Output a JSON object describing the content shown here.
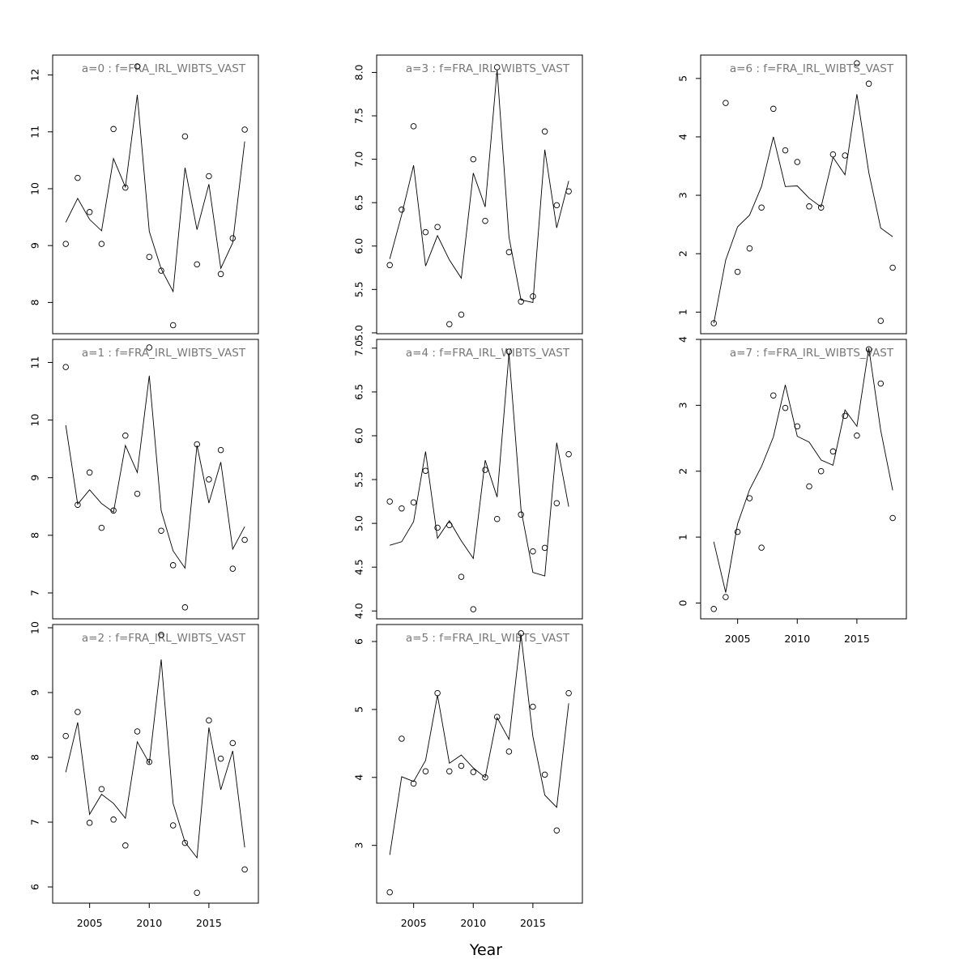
{
  "figure": {
    "xlabel": "Year"
  },
  "chart_data": [
    {
      "type": "line",
      "title": "a=0 : f=FRA_IRL_WIBTS_VAST",
      "x": [
        2003,
        2004,
        2005,
        2006,
        2007,
        2008,
        2009,
        2010,
        2011,
        2012,
        2013,
        2014,
        2015,
        2016,
        2017,
        2018
      ],
      "observed": [
        9.03,
        10.19,
        9.59,
        9.03,
        11.05,
        10.02,
        12.15,
        8.8,
        8.56,
        7.6,
        10.92,
        8.67,
        10.22,
        8.5,
        9.13,
        11.04
      ],
      "fitted": [
        9.41,
        9.83,
        9.46,
        9.26,
        10.53,
        10.03,
        11.65,
        9.25,
        8.59,
        8.19,
        10.37,
        9.28,
        10.08,
        8.6,
        9.05,
        10.83
      ],
      "yticks": [
        8,
        9,
        10,
        11,
        12
      ],
      "ylim": [
        7.45,
        12.35
      ],
      "show_xticks": false,
      "series": [
        {
          "name": ""
        },
        {
          "name": ""
        }
      ]
    },
    {
      "type": "line",
      "title": "a=1 : f=FRA_IRL_WIBTS_VAST",
      "x": [
        2003,
        2004,
        2005,
        2006,
        2007,
        2008,
        2009,
        2010,
        2011,
        2012,
        2013,
        2014,
        2015,
        2016,
        2017,
        2018
      ],
      "observed": [
        10.92,
        8.53,
        9.09,
        8.13,
        8.43,
        9.73,
        8.72,
        11.26,
        8.08,
        7.48,
        6.75,
        9.58,
        8.97,
        9.48,
        7.42,
        7.92
      ],
      "fitted": [
        9.91,
        8.54,
        8.79,
        8.55,
        8.4,
        9.56,
        9.09,
        10.77,
        8.43,
        7.73,
        7.43,
        9.56,
        8.56,
        9.27,
        7.76,
        8.15
      ],
      "yticks": [
        7,
        8,
        9,
        10,
        11
      ],
      "ylim": [
        6.55,
        11.4
      ],
      "show_xticks": false
    },
    {
      "type": "line",
      "title": "a=2 : f=FRA_IRL_WIBTS_VAST",
      "x": [
        2003,
        2004,
        2005,
        2006,
        2007,
        2008,
        2009,
        2010,
        2011,
        2012,
        2013,
        2014,
        2015,
        2016,
        2017,
        2018
      ],
      "observed": [
        8.33,
        8.7,
        6.99,
        7.51,
        7.04,
        6.64,
        8.4,
        7.93,
        9.89,
        6.95,
        6.68,
        5.91,
        8.57,
        7.98,
        8.22,
        6.27
      ],
      "fitted": [
        7.77,
        8.54,
        7.12,
        7.43,
        7.29,
        7.06,
        8.24,
        7.91,
        9.51,
        7.29,
        6.69,
        6.45,
        8.46,
        7.5,
        8.1,
        6.61
      ],
      "yticks": [
        6,
        7,
        8,
        9,
        10
      ],
      "ylim": [
        5.75,
        10.05
      ],
      "show_xticks": true
    },
    {
      "type": "line",
      "title": "a=3 : f=FRA_IRL_WIBTS_VAST",
      "x": [
        2003,
        2004,
        2005,
        2006,
        2007,
        2008,
        2009,
        2010,
        2011,
        2012,
        2013,
        2014,
        2015,
        2016,
        2017,
        2018
      ],
      "observed": [
        5.78,
        6.42,
        7.38,
        6.16,
        6.22,
        5.1,
        5.21,
        7.0,
        6.29,
        8.06,
        5.93,
        5.36,
        5.42,
        7.32,
        6.47,
        6.63
      ],
      "fitted": [
        5.85,
        6.36,
        6.93,
        5.77,
        6.12,
        5.84,
        5.63,
        6.84,
        6.45,
        8.03,
        6.1,
        5.38,
        5.35,
        7.11,
        6.21,
        6.75
      ],
      "yticks": [
        5.0,
        5.5,
        6.0,
        6.5,
        7.0,
        7.5,
        8.0
      ],
      "ylim": [
        4.99,
        8.2
      ],
      "show_xticks": false
    },
    {
      "type": "line",
      "title": "a=4 : f=FRA_IRL_WIBTS_VAST",
      "x": [
        2003,
        2004,
        2005,
        2006,
        2007,
        2008,
        2009,
        2010,
        2011,
        2012,
        2013,
        2014,
        2015,
        2016,
        2017,
        2018
      ],
      "observed": [
        5.25,
        5.17,
        5.24,
        5.6,
        4.95,
        4.98,
        4.39,
        4.02,
        5.61,
        5.05,
        6.96,
        5.1,
        4.68,
        4.72,
        5.23,
        5.79
      ],
      "fitted": [
        4.75,
        4.79,
        5.02,
        5.82,
        4.83,
        5.03,
        4.8,
        4.6,
        5.72,
        5.3,
        6.94,
        5.16,
        4.44,
        4.4,
        5.92,
        5.19
      ],
      "yticks": [
        4.0,
        4.5,
        5.0,
        5.5,
        6.0,
        6.5,
        7.0
      ],
      "ylim": [
        3.91,
        7.1
      ],
      "show_xticks": false
    },
    {
      "type": "line",
      "title": "a=5 : f=FRA_IRL_WIBTS_VAST",
      "x": [
        2003,
        2004,
        2005,
        2006,
        2007,
        2008,
        2009,
        2010,
        2011,
        2012,
        2013,
        2014,
        2015,
        2016,
        2017,
        2018
      ],
      "observed": [
        2.31,
        4.57,
        3.91,
        4.09,
        5.24,
        4.09,
        4.17,
        4.08,
        4.0,
        4.89,
        4.38,
        6.12,
        5.04,
        4.04,
        3.22,
        5.24
      ],
      "fitted": [
        2.86,
        4.01,
        3.94,
        4.25,
        5.21,
        4.21,
        4.33,
        4.14,
        4.0,
        4.88,
        4.56,
        6.1,
        4.6,
        3.74,
        3.56,
        5.09
      ],
      "yticks": [
        3,
        4,
        5,
        6
      ],
      "ylim": [
        2.15,
        6.25
      ],
      "show_xticks": true
    },
    {
      "type": "line",
      "title": "a=6 : f=FRA_IRL_WIBTS_VAST",
      "x": [
        2003,
        2004,
        2005,
        2006,
        2007,
        2008,
        2009,
        2010,
        2011,
        2012,
        2013,
        2014,
        2015,
        2016,
        2017,
        2018
      ],
      "observed": [
        0.81,
        4.58,
        1.69,
        2.09,
        2.79,
        4.48,
        3.77,
        3.57,
        2.81,
        2.79,
        3.7,
        3.68,
        5.26,
        4.91,
        0.85,
        1.76
      ],
      "fitted": [
        0.81,
        1.89,
        2.46,
        2.66,
        3.15,
        4.0,
        3.15,
        3.16,
        2.95,
        2.8,
        3.65,
        3.35,
        4.73,
        3.39,
        2.44,
        2.29
      ],
      "yticks": [
        1,
        2,
        3,
        4,
        5
      ],
      "ylim": [
        0.63,
        5.4
      ],
      "show_xticks": false
    },
    {
      "type": "line",
      "title": "a=7 : f=FRA_IRL_WIBTS_VAST",
      "x": [
        2003,
        2004,
        2005,
        2006,
        2007,
        2008,
        2009,
        2010,
        2011,
        2012,
        2013,
        2014,
        2015,
        2016,
        2017,
        2018
      ],
      "observed": [
        -0.09,
        0.09,
        1.08,
        1.59,
        0.84,
        3.15,
        2.96,
        2.68,
        1.77,
        2.0,
        2.3,
        2.84,
        2.54,
        3.85,
        3.33,
        1.29
      ],
      "fitted": [
        0.93,
        0.16,
        1.2,
        1.72,
        2.07,
        2.52,
        3.31,
        2.53,
        2.44,
        2.17,
        2.09,
        2.93,
        2.68,
        3.87,
        2.62,
        1.71
      ],
      "yticks": [
        0,
        1,
        2,
        3,
        4
      ],
      "ylim": [
        -0.24,
        4.0
      ],
      "show_xticks": true
    }
  ]
}
